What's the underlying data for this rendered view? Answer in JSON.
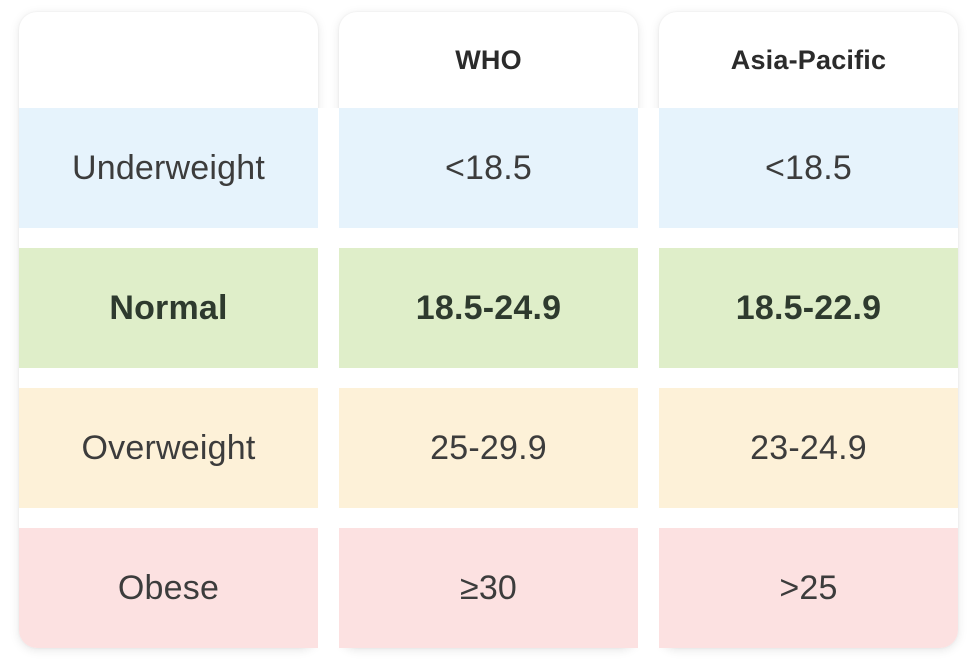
{
  "header": {
    "col_label": "",
    "who": "WHO",
    "asia_pacific": "Asia-Pacific"
  },
  "rows": [
    {
      "category": "Underweight",
      "who": "<18.5",
      "asia_pacific": "<18.5",
      "color": "#e6f3fc"
    },
    {
      "category": "Normal",
      "who": "18.5-24.9",
      "asia_pacific": "18.5-22.9",
      "color": "#dfeec9"
    },
    {
      "category": "Overweight",
      "who": "25-29.9",
      "asia_pacific": "23-24.9",
      "color": "#fdf1d8"
    },
    {
      "category": "Obese",
      "who": "≥30",
      "asia_pacific": ">25",
      "color": "#fce1e1"
    }
  ]
}
